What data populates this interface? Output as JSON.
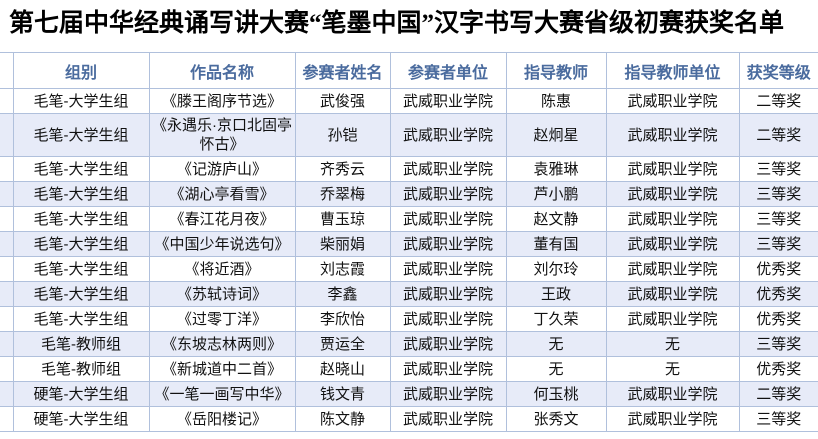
{
  "title": "第七届中华经典诵写讲大赛“笔墨中国”汉字书写大赛省级初赛获奖名单",
  "colors": {
    "header_text": "#4a6b9e",
    "border": "#b0c0dc",
    "stripe": "#e7ebf8",
    "title_text": "#000000",
    "background": "#ffffff"
  },
  "table": {
    "columns": [
      "组别",
      "作品名称",
      "参赛者姓名",
      "参赛者单位",
      "指导教师",
      "指导教师单位",
      "获奖等级"
    ],
    "rows": [
      [
        "毛笔-大学生组",
        "《滕王阁序节选》",
        "武俊强",
        "武威职业学院",
        "陈惠",
        "武威职业学院",
        "二等奖"
      ],
      [
        "毛笔-大学生组",
        "《永遇乐·京口北固亭怀古》",
        "孙铠",
        "武威职业学院",
        "赵炯星",
        "武威职业学院",
        "二等奖"
      ],
      [
        "毛笔-大学生组",
        "《记游庐山》",
        "齐秀云",
        "武威职业学院",
        "袁雅琳",
        "武威职业学院",
        "三等奖"
      ],
      [
        "毛笔-大学生组",
        "《湖心亭看雪》",
        "乔翠梅",
        "武威职业学院",
        "芦小鹏",
        "武威职业学院",
        "三等奖"
      ],
      [
        "毛笔-大学生组",
        "《春江花月夜》",
        "曹玉琼",
        "武威职业学院",
        "赵文静",
        "武威职业学院",
        "三等奖"
      ],
      [
        "毛笔-大学生组",
        "《中国少年说选句》",
        "柴丽娟",
        "武威职业学院",
        "董有国",
        "武威职业学院",
        "三等奖"
      ],
      [
        "毛笔-大学生组",
        "《将近酒》",
        "刘志霞",
        "武威职业学院",
        "刘尔玲",
        "武威职业学院",
        "优秀奖"
      ],
      [
        "毛笔-大学生组",
        "《苏轼诗词》",
        "李鑫",
        "武威职业学院",
        "王政",
        "武威职业学院",
        "优秀奖"
      ],
      [
        "毛笔-大学生组",
        "《过零丁洋》",
        "李欣怡",
        "武威职业学院",
        "丁久荣",
        "武威职业学院",
        "优秀奖"
      ],
      [
        "毛笔-教师组",
        "《东坡志林两则》",
        "贾运全",
        "武威职业学院",
        "无",
        "无",
        "三等奖"
      ],
      [
        "毛笔-教师组",
        "《新城道中二首》",
        "赵晓山",
        "武威职业学院",
        "无",
        "无",
        "优秀奖"
      ],
      [
        "硬笔-大学生组",
        "《一笔一画写中华》",
        "钱文青",
        "武威职业学院",
        "何玉桃",
        "武威职业学院",
        "二等奖"
      ],
      [
        "硬笔-大学生组",
        "《岳阳楼记》",
        "陈文静",
        "武威职业学院",
        "张秀文",
        "武威职业学院",
        "三等奖"
      ]
    ]
  }
}
